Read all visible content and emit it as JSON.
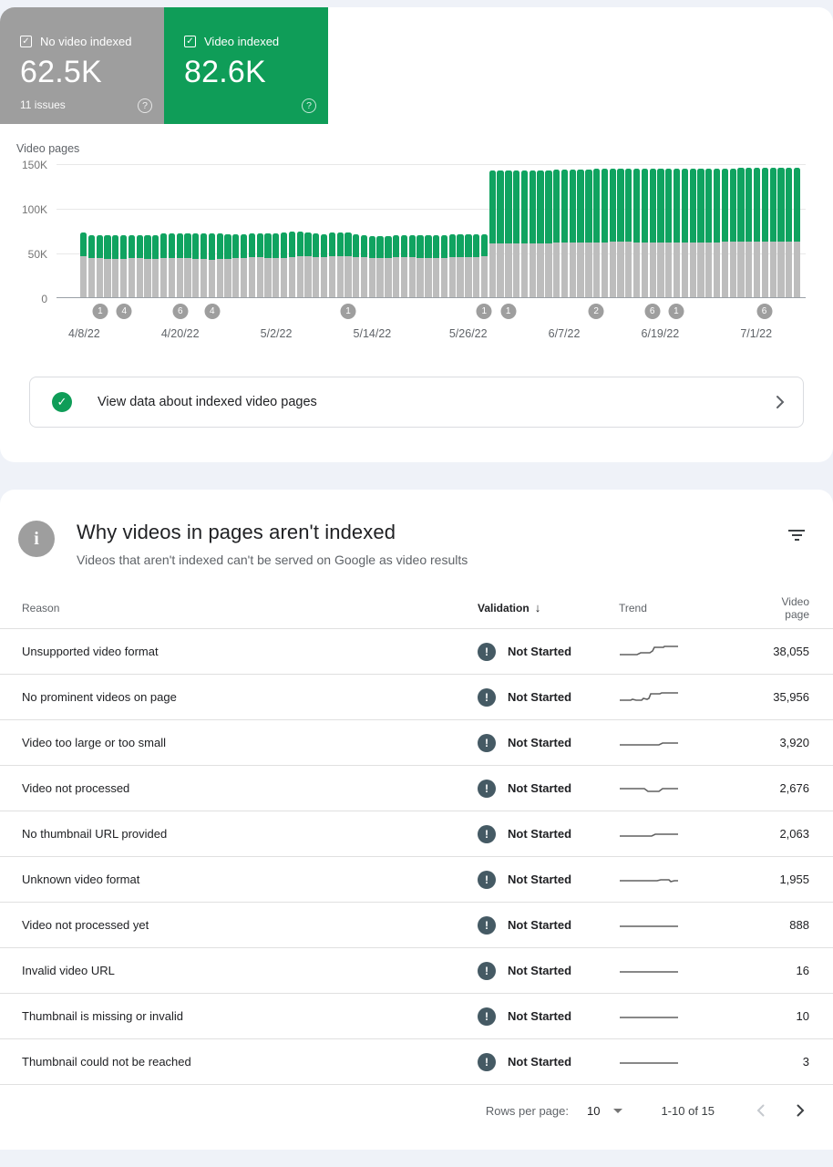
{
  "summary_cards": [
    {
      "label": "No video indexed",
      "value": "62.5K",
      "sub": "11 issues",
      "color": "#9E9E9E",
      "checked": true
    },
    {
      "label": "Video indexed",
      "value": "82.6K",
      "sub": "",
      "color": "#0F9D58",
      "checked": true
    }
  ],
  "chart_data": {
    "type": "bar",
    "stacked": true,
    "title": "Video pages",
    "ylabel": "Video pages",
    "unit": "thousands of pages (K)",
    "ylim": [
      0,
      150
    ],
    "ytick_labels": [
      "150K",
      "100K",
      "50K",
      "0"
    ],
    "grid": true,
    "start_date": "4/8/22",
    "x_tick_labels": [
      {
        "day": 0,
        "label": "4/8/22"
      },
      {
        "day": 12,
        "label": "4/20/22"
      },
      {
        "day": 24,
        "label": "5/2/22"
      },
      {
        "day": 36,
        "label": "5/14/22"
      },
      {
        "day": 48,
        "label": "5/26/22"
      },
      {
        "day": 60,
        "label": "6/7/22"
      },
      {
        "day": 72,
        "label": "6/19/22"
      },
      {
        "day": 84,
        "label": "7/1/22"
      }
    ],
    "series": [
      {
        "name": "No video indexed",
        "color": "#BDBDBD",
        "values": [
          46,
          44,
          44,
          43,
          43,
          43,
          44,
          44,
          43,
          43,
          44,
          44,
          44,
          44,
          43,
          43,
          42,
          43,
          43,
          44,
          44,
          45,
          45,
          44,
          44,
          44,
          45,
          46,
          46,
          45,
          45,
          46,
          46,
          46,
          45,
          45,
          44,
          44,
          44,
          45,
          45,
          45,
          44,
          44,
          44,
          44,
          45,
          45,
          45,
          45,
          46,
          61,
          61,
          61,
          61,
          61,
          61,
          61,
          61,
          62,
          62,
          62,
          62,
          62,
          62,
          62,
          63,
          63,
          63,
          62,
          62,
          62,
          62,
          62,
          62,
          62,
          62,
          62,
          62,
          62,
          63,
          63,
          63,
          63,
          63,
          63,
          63,
          63,
          63,
          63
        ]
      },
      {
        "name": "Video indexed",
        "color": "#10A360",
        "values": [
          27,
          26,
          26,
          27,
          27,
          27,
          26,
          26,
          27,
          27,
          28,
          28,
          28,
          28,
          29,
          29,
          30,
          29,
          28,
          27,
          27,
          27,
          27,
          28,
          28,
          29,
          29,
          28,
          27,
          27,
          26,
          27,
          27,
          27,
          26,
          25,
          25,
          25,
          25,
          25,
          25,
          25,
          26,
          26,
          26,
          26,
          26,
          26,
          26,
          26,
          25,
          82,
          82,
          82,
          82,
          82,
          82,
          82,
          82,
          82,
          82,
          82,
          82,
          82,
          83,
          83,
          82,
          82,
          82,
          83,
          83,
          83,
          83,
          83,
          83,
          83,
          83,
          83,
          83,
          83,
          82,
          82,
          83,
          83,
          83,
          83,
          83,
          83,
          83,
          83
        ]
      }
    ],
    "annotations": [
      {
        "day": 2,
        "count": "1"
      },
      {
        "day": 5,
        "count": "4"
      },
      {
        "day": 12,
        "count": "6"
      },
      {
        "day": 16,
        "count": "4"
      },
      {
        "day": 33,
        "count": "1"
      },
      {
        "day": 50,
        "count": "1"
      },
      {
        "day": 53,
        "count": "1"
      },
      {
        "day": 64,
        "count": "2"
      },
      {
        "day": 71,
        "count": "6"
      },
      {
        "day": 74,
        "count": "1"
      },
      {
        "day": 85,
        "count": "6"
      }
    ]
  },
  "view_data_banner": {
    "text": "View data about indexed video pages"
  },
  "issues_section": {
    "title": "Why videos in pages aren't indexed",
    "subtitle": "Videos that aren't indexed can't be served on Google as video results",
    "columns": {
      "reason": "Reason",
      "validation": "Validation",
      "trend": "Trend",
      "video_page": "Video page"
    },
    "sort_column": "Validation",
    "rows": [
      {
        "reason": "Unsupported video format",
        "validation": "Not Started",
        "video_page": "38,055",
        "trend": [
          [
            1,
            13
          ],
          [
            20,
            13
          ],
          [
            24,
            11
          ],
          [
            34,
            11
          ],
          [
            37,
            9
          ],
          [
            39,
            5
          ],
          [
            49,
            5
          ],
          [
            50,
            4
          ],
          [
            65,
            4
          ]
        ]
      },
      {
        "reason": "No prominent videos on page",
        "validation": "Not Started",
        "video_page": "35,956",
        "trend": [
          [
            1,
            13
          ],
          [
            13,
            13
          ],
          [
            15,
            12
          ],
          [
            19,
            13
          ],
          [
            25,
            13
          ],
          [
            27,
            11
          ],
          [
            31,
            12
          ],
          [
            33,
            11
          ],
          [
            35,
            6
          ],
          [
            45,
            6
          ],
          [
            47,
            5
          ],
          [
            65,
            5
          ]
        ]
      },
      {
        "reason": "Video too large or too small",
        "validation": "Not Started",
        "video_page": "3,920",
        "trend": [
          [
            1,
            12
          ],
          [
            44,
            12
          ],
          [
            48,
            10
          ],
          [
            65,
            10
          ]
        ]
      },
      {
        "reason": "Video not processed",
        "validation": "Not Started",
        "video_page": "2,676",
        "trend": [
          [
            1,
            10
          ],
          [
            28,
            10
          ],
          [
            32,
            13
          ],
          [
            44,
            13
          ],
          [
            48,
            10
          ],
          [
            65,
            10
          ]
        ]
      },
      {
        "reason": "No thumbnail URL provided",
        "validation": "Not Started",
        "video_page": "2,063",
        "trend": [
          [
            1,
            12
          ],
          [
            36,
            12
          ],
          [
            40,
            10
          ],
          [
            65,
            10
          ]
        ]
      },
      {
        "reason": "Unknown video format",
        "validation": "Not Started",
        "video_page": "1,955",
        "trend": [
          [
            1,
            11
          ],
          [
            42,
            11
          ],
          [
            46,
            10
          ],
          [
            55,
            10
          ],
          [
            57,
            12
          ],
          [
            61,
            11
          ],
          [
            65,
            11
          ]
        ]
      },
      {
        "reason": "Video not processed yet",
        "validation": "Not Started",
        "video_page": "888",
        "trend": [
          [
            1,
            11
          ],
          [
            65,
            11
          ]
        ]
      },
      {
        "reason": "Invalid video URL",
        "validation": "Not Started",
        "video_page": "16",
        "trend": [
          [
            1,
            11
          ],
          [
            65,
            11
          ]
        ]
      },
      {
        "reason": "Thumbnail is missing or invalid",
        "validation": "Not Started",
        "video_page": "10",
        "trend": [
          [
            1,
            11
          ],
          [
            65,
            11
          ]
        ]
      },
      {
        "reason": "Thumbnail could not be reached",
        "validation": "Not Started",
        "video_page": "3",
        "trend": [
          [
            1,
            11
          ],
          [
            65,
            11
          ]
        ]
      }
    ],
    "footer": {
      "rows_per_page_label": "Rows per page:",
      "rows_per_page_value": "10",
      "range_label": "1-10 of 15"
    }
  }
}
